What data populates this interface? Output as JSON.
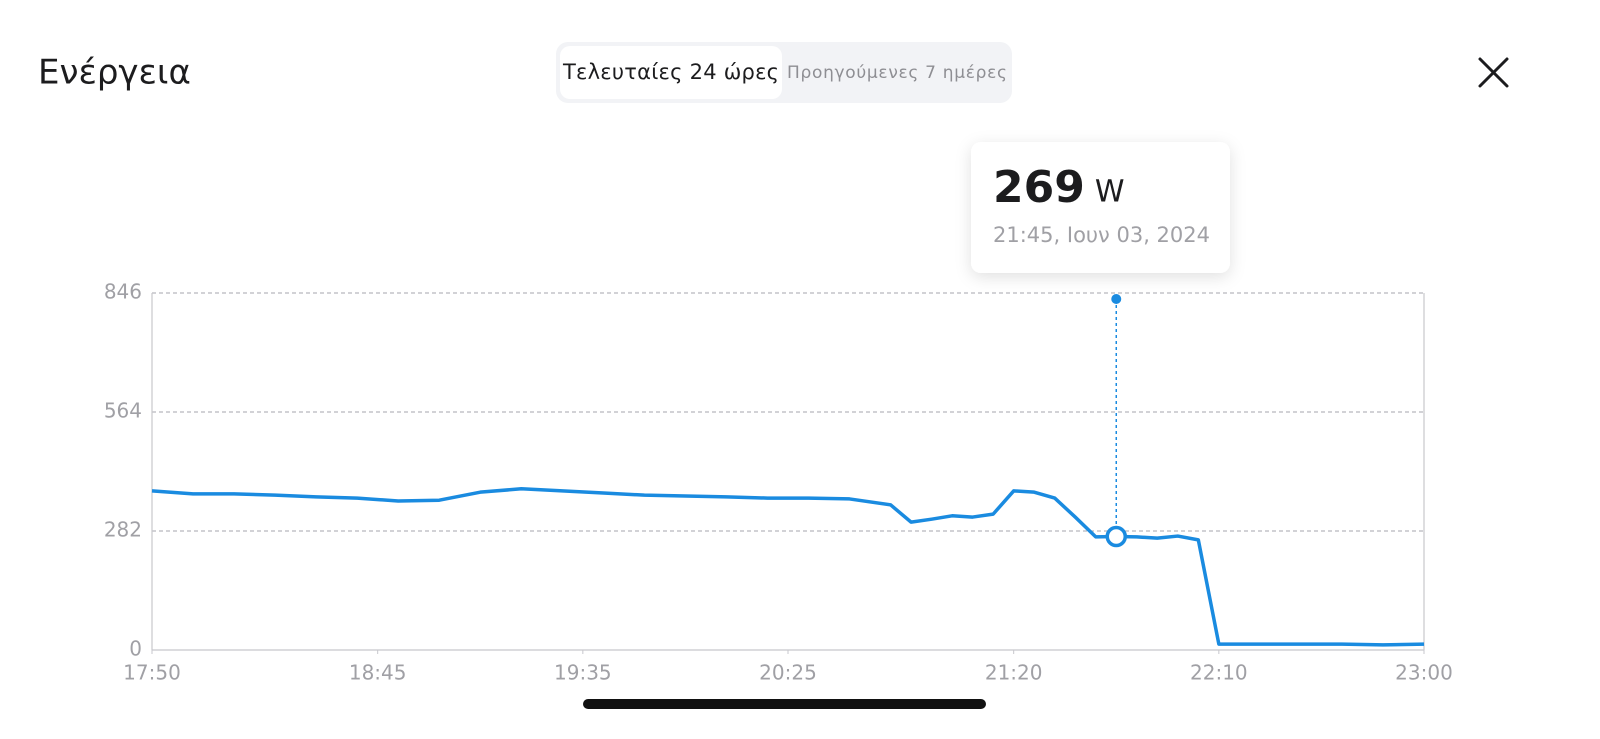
{
  "header": {
    "title": "Ενέργεια",
    "tabs": [
      "Τελευταίες 24 ώρες",
      "Προηγούμενες 7 ημέρες"
    ]
  },
  "tooltip": {
    "value": 269,
    "unit": "W",
    "time": "21:45, Ιουν 03, 2024"
  },
  "chart_data": {
    "type": "line",
    "x": [
      "17:50",
      "18:00",
      "18:10",
      "18:20",
      "18:30",
      "18:40",
      "18:50",
      "19:00",
      "19:10",
      "19:20",
      "19:30",
      "19:40",
      "19:50",
      "20:00",
      "20:10",
      "20:20",
      "20:30",
      "20:40",
      "20:50",
      "20:55",
      "21:00",
      "21:05",
      "21:10",
      "21:15",
      "21:20",
      "21:25",
      "21:30",
      "21:35",
      "21:40",
      "21:45",
      "21:50",
      "21:55",
      "22:00",
      "22:05",
      "22:10",
      "22:20",
      "22:30",
      "22:40",
      "22:50",
      "23:00"
    ],
    "series": [
      {
        "color": "#1a8be0",
        "values": [
          377,
          370,
          370,
          367,
          363,
          360,
          353,
          355,
          374,
          382,
          377,
          372,
          367,
          365,
          363,
          360,
          360,
          358,
          344,
          303,
          310,
          318,
          315,
          322,
          377,
          374,
          360,
          315,
          268,
          269,
          268,
          265,
          270,
          261,
          14,
          14,
          14,
          14,
          12,
          14
        ]
      }
    ],
    "xlim": [
      "17:50",
      "23:00"
    ],
    "xticks": [
      "17:50",
      "18:45",
      "19:35",
      "20:25",
      "21:20",
      "22:10",
      "23:00"
    ],
    "ylim": [
      0,
      846
    ],
    "yticks": [
      0,
      282,
      564,
      846
    ],
    "grid": true
  }
}
